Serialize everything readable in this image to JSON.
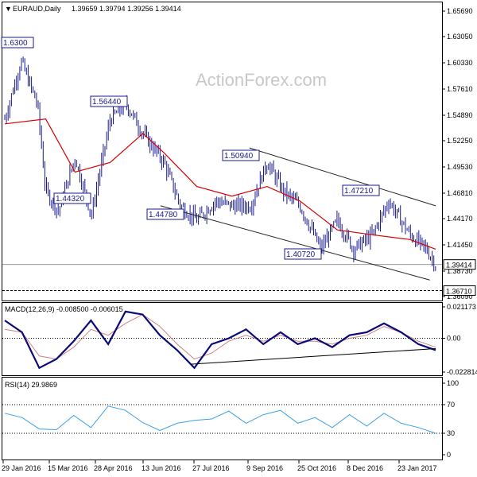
{
  "header": {
    "main": {
      "symbol_label": "EURAUD,Daily",
      "ohlc_label": "1.39659 1.39794 1.39256 1.39414"
    },
    "macd": {
      "label": "MACD(12,26,9) -0.008500 -0.006015"
    },
    "rsi": {
      "label": "RSI(14) 29.9869"
    }
  },
  "watermark": "ActionForex.com",
  "price_axis": {
    "ticks": [
      "1.65690",
      "1.63050",
      "1.60330",
      "1.57610",
      "1.54890",
      "1.52250",
      "1.49530",
      "1.46810",
      "1.44170",
      "1.41450",
      "1.38730",
      "1.36090"
    ],
    "current_price": "1.39414",
    "support_level": "1.36710"
  },
  "macd_axis": {
    "ticks": [
      "0.021173",
      "0.00",
      "-0.022814"
    ]
  },
  "rsi_axis": {
    "ticks": [
      "100",
      "70",
      "30",
      "0"
    ]
  },
  "time_axis": {
    "labels": [
      "29 Jan 2016",
      "15 Mar 2016",
      "28 Apr 2016",
      "13 Jun 2016",
      "27 Jul 2016",
      "9 Sep 2016",
      "25 Oct 2016",
      "8 Dec 2016",
      "23 Jan 2017"
    ]
  },
  "annotations": [
    "1.56440",
    "1.44320",
    "1.44780",
    "1.50940",
    "1.40720",
    "1.47210",
    "1.6300"
  ],
  "colors": {
    "price_bars": "#1a1a8c",
    "moving_average": "#d60000",
    "macd_line": "#0a0a78",
    "signal_line": "#d08080",
    "rsi_line": "#3aa0e8",
    "channel": "#222222"
  },
  "chart_data": [
    {
      "type": "ohlc",
      "series": [
        {
          "name": "EURAUD,Daily",
          "x": [
            "2016-01-29",
            "2016-02-12",
            "2016-02-26",
            "2016-03-04",
            "2016-03-15",
            "2016-03-29",
            "2016-04-12",
            "2016-04-28",
            "2016-05-12",
            "2016-05-26",
            "2016-06-13",
            "2016-06-27",
            "2016-07-11",
            "2016-07-27",
            "2016-08-10",
            "2016-08-26",
            "2016-09-09",
            "2016-09-23",
            "2016-10-07",
            "2016-10-25",
            "2016-11-08",
            "2016-11-22",
            "2016-12-08",
            "2016-12-22",
            "2017-01-09",
            "2017-01-23",
            "2017-01-31"
          ],
          "close": [
            1.545,
            1.605,
            1.56,
            1.47,
            1.45,
            1.505,
            1.445,
            1.545,
            1.56,
            1.53,
            1.5,
            1.455,
            1.44,
            1.46,
            1.455,
            1.455,
            1.5,
            1.47,
            1.455,
            1.41,
            1.44,
            1.41,
            1.425,
            1.46,
            1.425,
            1.41,
            1.394
          ]
        },
        {
          "name": "Moving average",
          "x": [
            "2016-01-29",
            "2016-03-04",
            "2016-03-29",
            "2016-04-28",
            "2016-05-26",
            "2016-06-13",
            "2016-07-11",
            "2016-08-10",
            "2016-09-09",
            "2016-10-07",
            "2016-11-08",
            "2016-12-08",
            "2017-01-09",
            "2017-01-31"
          ],
          "values": [
            1.54,
            1.545,
            1.49,
            1.5,
            1.53,
            1.51,
            1.475,
            1.465,
            1.475,
            1.46,
            1.43,
            1.425,
            1.42,
            1.41
          ]
        }
      ],
      "annotations": [
        {
          "label": "1.56440",
          "date": "2016-04-21",
          "price": 1.5644
        },
        {
          "label": "1.44320",
          "date": "2016-03-08",
          "price": 1.4432
        },
        {
          "label": "1.44780",
          "date": "2016-06-24",
          "price": 1.4478
        },
        {
          "label": "1.50940",
          "date": "2016-09-07",
          "price": 1.5094
        },
        {
          "label": "1.40720",
          "date": "2016-11-09",
          "price": 1.4072
        },
        {
          "label": "1.47210",
          "date": "2016-12-20",
          "price": 1.4721
        }
      ],
      "ylim": [
        1.3609,
        1.6569
      ]
    },
    {
      "type": "line",
      "series": [
        {
          "name": "MACD(12,26,9)",
          "values": [
            0.012,
            0.004,
            -0.02,
            -0.014,
            -0.002,
            0.012,
            -0.004,
            0.018,
            0.016,
            0.002,
            -0.008,
            -0.02,
            -0.004,
            0.0,
            0.006,
            -0.004,
            0.004,
            -0.004,
            0.0,
            -0.006,
            0.002,
            0.004,
            0.01,
            0.004,
            -0.004,
            -0.008
          ]
        },
        {
          "name": "Signal",
          "values": [
            0.006,
            0.004,
            -0.012,
            -0.014,
            -0.006,
            0.006,
            0.002,
            0.01,
            0.016,
            0.008,
            -0.004,
            -0.014,
            -0.01,
            -0.002,
            0.002,
            -0.002,
            0.002,
            -0.002,
            -0.002,
            -0.004,
            0.0,
            0.002,
            0.008,
            0.004,
            -0.002,
            -0.006
          ]
        }
      ],
      "ylim": [
        -0.022814,
        0.021173
      ]
    },
    {
      "type": "line",
      "series": [
        {
          "name": "RSI(14)",
          "values": [
            58,
            52,
            36,
            35,
            55,
            38,
            68,
            62,
            45,
            34,
            44,
            48,
            50,
            61,
            44,
            56,
            62,
            44,
            52,
            38,
            56,
            40,
            58,
            44,
            38,
            30
          ]
        }
      ],
      "ylim": [
        0,
        100
      ]
    }
  ]
}
